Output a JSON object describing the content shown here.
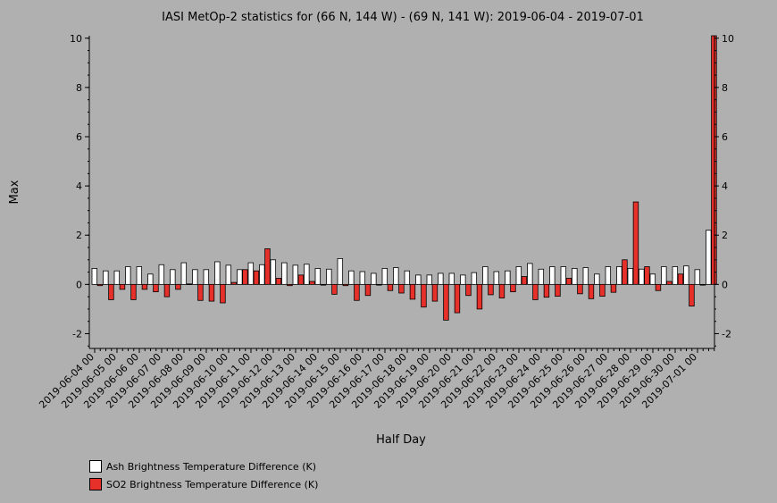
{
  "chart_data": {
    "type": "bar",
    "title": "IASI MetOp-2 statistics for (66 N, 144 W) - (69 N, 141 W): 2019-06-04 - 2019-07-01",
    "xlabel": "Half Day",
    "ylabel": "Max",
    "ylim": [
      -2.6,
      10.1
    ],
    "yticks": [
      -2,
      0,
      2,
      4,
      6,
      8,
      10
    ],
    "x_tick_labels": [
      "2019-06-04 00",
      "2019-06-05 00",
      "2019-06-06 00",
      "2019-06-07 00",
      "2019-06-08 00",
      "2019-06-09 00",
      "2019-06-10 00",
      "2019-06-11 00",
      "2019-06-12 00",
      "2019-06-13 00",
      "2019-06-14 00",
      "2019-06-15 00",
      "2019-06-16 00",
      "2019-06-17 00",
      "2019-06-18 00",
      "2019-06-19 00",
      "2019-06-20 00",
      "2019-06-21 00",
      "2019-06-22 00",
      "2019-06-23 00",
      "2019-06-24 00",
      "2019-06-25 00",
      "2019-06-26 00",
      "2019-06-27 00",
      "2019-06-28 00",
      "2019-06-29 00",
      "2019-06-30 00",
      "2019-07-01 00"
    ],
    "grid": false,
    "legend_position": "bottom-left",
    "series": [
      {
        "name": "Ash Brightness Temperature Difference (K)",
        "color": "#ffffff",
        "values": [
          0.65,
          0.55,
          0.55,
          0.72,
          0.72,
          0.42,
          0.8,
          0.6,
          0.88,
          0.6,
          0.6,
          0.92,
          0.78,
          0.6,
          0.88,
          0.8,
          1.0,
          0.88,
          0.78,
          0.82,
          0.65,
          0.62,
          1.05,
          0.55,
          0.52,
          0.45,
          0.65,
          0.68,
          0.55,
          0.38,
          0.38,
          0.45,
          0.45,
          0.38,
          0.48,
          0.72,
          0.52,
          0.55,
          0.72,
          0.85,
          0.62,
          0.72,
          0.72,
          0.65,
          0.68,
          0.42,
          0.72,
          0.72,
          0.65,
          0.62,
          0.42,
          0.72,
          0.72,
          0.75,
          0.6,
          2.2
        ]
      },
      {
        "name": "SO2 Brightness Temperature Difference (K)",
        "color": "#e8302a",
        "values": [
          -0.05,
          -0.62,
          -0.2,
          -0.62,
          -0.2,
          -0.3,
          -0.5,
          -0.2,
          0.02,
          -0.65,
          -0.68,
          -0.75,
          0.08,
          0.6,
          0.55,
          1.45,
          0.25,
          -0.05,
          0.38,
          0.12,
          0.0,
          -0.4,
          -0.05,
          -0.65,
          -0.45,
          0.0,
          -0.25,
          -0.35,
          -0.6,
          -0.92,
          -0.68,
          -1.45,
          -1.15,
          -0.45,
          -1.0,
          -0.42,
          -0.55,
          -0.3,
          0.32,
          -0.62,
          -0.52,
          -0.48,
          0.25,
          -0.38,
          -0.58,
          -0.48,
          -0.32,
          1.0,
          3.35,
          0.72,
          -0.25,
          0.12,
          0.42,
          -0.88,
          0.0,
          10.1
        ]
      }
    ]
  }
}
